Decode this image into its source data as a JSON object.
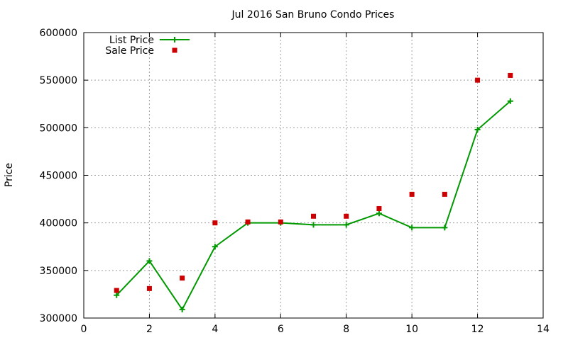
{
  "chart_data": {
    "type": "line",
    "title": "Jul 2016 San Bruno Condo Prices",
    "xlabel": "",
    "ylabel": "Price",
    "xlim": [
      0,
      14
    ],
    "ylim": [
      300000,
      600000
    ],
    "xticks": [
      0,
      2,
      4,
      6,
      8,
      10,
      12,
      14
    ],
    "yticks": [
      300000,
      350000,
      400000,
      450000,
      500000,
      550000,
      600000
    ],
    "grid": true,
    "legend_position": "top-left",
    "series": [
      {
        "name": "List Price",
        "style": "line-with-plus-markers",
        "color": "#009900",
        "x": [
          1,
          2,
          3,
          4,
          5,
          6,
          7,
          8,
          9,
          10,
          11,
          12,
          13
        ],
        "y": [
          324000,
          360000,
          309000,
          375000,
          400000,
          400000,
          398000,
          398000,
          410000,
          395000,
          395000,
          498000,
          528000
        ]
      },
      {
        "name": "Sale Price",
        "style": "square-points",
        "color": "#cc0000",
        "x": [
          1,
          2,
          3,
          4,
          5,
          6,
          7,
          8,
          9,
          10,
          11,
          12,
          13
        ],
        "y": [
          329000,
          331000,
          342000,
          400000,
          401000,
          401000,
          407000,
          407000,
          415000,
          430000,
          430000,
          550000,
          555000
        ]
      }
    ]
  }
}
